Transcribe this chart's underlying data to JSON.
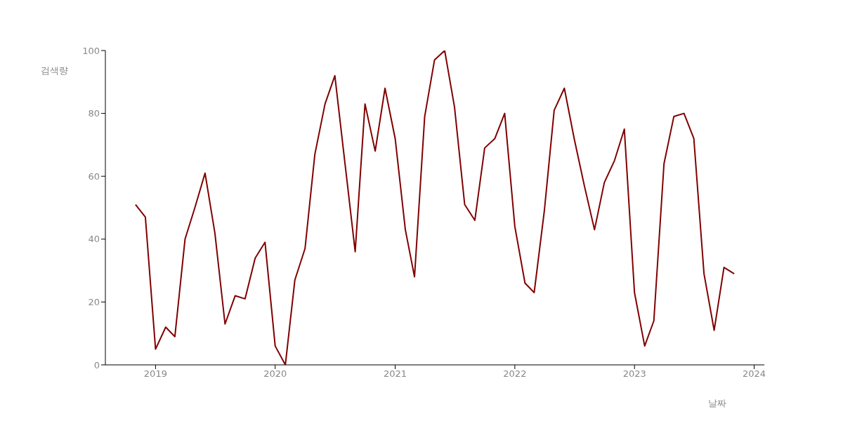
{
  "chart_data": {
    "type": "line",
    "xlabel": "날짜",
    "ylabel": "검색량",
    "x": [
      "2018-11",
      "2018-12",
      "2019-01",
      "2019-02",
      "2019-03",
      "2019-04",
      "2019-05",
      "2019-06",
      "2019-07",
      "2019-08",
      "2019-09",
      "2019-10",
      "2019-11",
      "2019-12",
      "2020-01",
      "2020-02",
      "2020-03",
      "2020-04",
      "2020-05",
      "2020-06",
      "2020-07",
      "2020-08",
      "2020-09",
      "2020-10",
      "2020-11",
      "2020-12",
      "2021-01",
      "2021-02",
      "2021-03",
      "2021-04",
      "2021-05",
      "2021-06",
      "2021-07",
      "2021-08",
      "2021-09",
      "2021-10",
      "2021-11",
      "2021-12",
      "2022-01",
      "2022-02",
      "2022-03",
      "2022-04",
      "2022-05",
      "2022-06",
      "2022-07",
      "2022-08",
      "2022-09",
      "2022-10",
      "2022-11",
      "2022-12",
      "2023-01",
      "2023-02",
      "2023-03",
      "2023-04",
      "2023-05",
      "2023-06",
      "2023-07",
      "2023-08",
      "2023-09",
      "2023-10",
      "2023-11"
    ],
    "series": [
      {
        "color": "#800000",
        "values": [
          51,
          47,
          5,
          12,
          9,
          40,
          50,
          61,
          42,
          13,
          22,
          21,
          34,
          39,
          6,
          0,
          27,
          37,
          67,
          83,
          92,
          64,
          36,
          83,
          68,
          88,
          72,
          43,
          28,
          79,
          97,
          100,
          82,
          51,
          46,
          69,
          72,
          80,
          44,
          26,
          23,
          49,
          81,
          88,
          72,
          57,
          43,
          58,
          65,
          75,
          23,
          6,
          14,
          64,
          79,
          80,
          72,
          29,
          11,
          31,
          29
        ]
      }
    ],
    "xlim": [
      "2018-08",
      "2024-02"
    ],
    "xticks": [
      "2019",
      "2020",
      "2021",
      "2022",
      "2023",
      "2024"
    ],
    "ylim": [
      0,
      100
    ],
    "yticks": [
      0,
      20,
      40,
      60,
      80,
      100
    ]
  }
}
